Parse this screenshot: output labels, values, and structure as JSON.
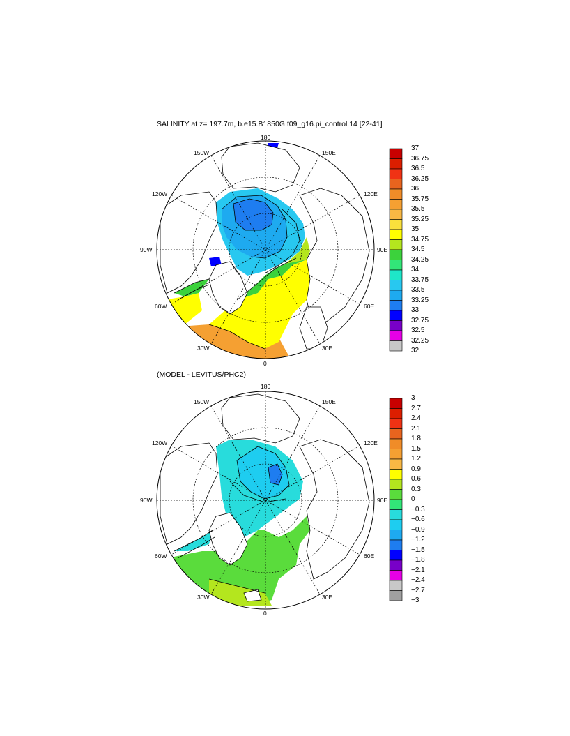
{
  "top_panel": {
    "title": "SALINITY at z= 197.7m, b.e15.B1850G.f09_g16.pi_control.14 [22-41]",
    "longitude_labels": {
      "n180": "180",
      "w150": "150W",
      "e150": "150E",
      "w120": "120W",
      "e120": "120E",
      "w90": "90W",
      "e90": "90E",
      "w60": "60W",
      "e60": "60E",
      "w30": "30W",
      "e30": "30E",
      "zero": "0"
    },
    "colorbar": {
      "labels": [
        "37",
        "36.75",
        "36.5",
        "36.25",
        "36",
        "35.75",
        "35.5",
        "35.25",
        "35",
        "34.75",
        "34.5",
        "34.25",
        "34",
        "33.75",
        "33.5",
        "33.25",
        "33",
        "32.75",
        "32.5",
        "32.25",
        "32"
      ],
      "colors": [
        "#c80000",
        "#dc1e00",
        "#f03214",
        "#e8641e",
        "#f08c28",
        "#f5a032",
        "#f8b844",
        "#fae03c",
        "#ffff00",
        "#b4e61e",
        "#3cd23c",
        "#32e678",
        "#1ee6c8",
        "#28c8f0",
        "#1eaaf0",
        "#1e7df0",
        "#0000ff",
        "#7800c8",
        "#e600e6",
        "#c8c8c8",
        "#787878"
      ]
    }
  },
  "bottom_panel": {
    "title": "(MODEL - LEVITUS/PHC2)",
    "longitude_labels": {
      "n180": "180",
      "w150": "150W",
      "e150": "150E",
      "w120": "120W",
      "e120": "120E",
      "w90": "90W",
      "e90": "90E",
      "w60": "60W",
      "e60": "60E",
      "w30": "30W",
      "e30": "30E",
      "zero": "0"
    },
    "colorbar": {
      "labels": [
        "3",
        "2.7",
        "2.4",
        "2.1",
        "1.8",
        "1.5",
        "1.2",
        "0.9",
        "0.6",
        "0.3",
        "0",
        "−0.3",
        "−0.6",
        "−0.9",
        "−1.2",
        "−1.5",
        "−1.8",
        "−2.1",
        "−2.4",
        "−2.7",
        "−3"
      ],
      "colors": [
        "#c80000",
        "#dc1e00",
        "#f03214",
        "#e8641e",
        "#f08c28",
        "#f5a032",
        "#f8b844",
        "#ffff00",
        "#b4e61e",
        "#5adc3c",
        "#32e678",
        "#28dcdc",
        "#1ecdf0",
        "#1eaaf0",
        "#1e7df0",
        "#0000ff",
        "#7800c8",
        "#e600e6",
        "#c8c8c8",
        "#a0a0a0",
        "#646464"
      ]
    }
  }
}
